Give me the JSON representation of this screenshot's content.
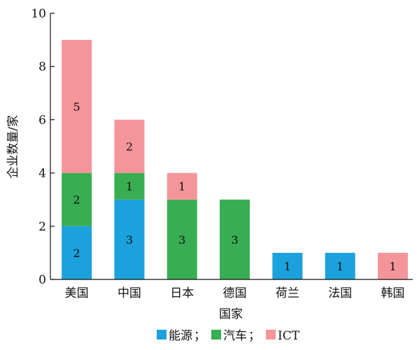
{
  "chart_data": {
    "type": "bar",
    "stacked": true,
    "categories": [
      "美国",
      "中国",
      "日本",
      "德国",
      "荷兰",
      "法国",
      "韩国"
    ],
    "series": [
      {
        "name": "能源",
        "color": "#1ba1dc",
        "values": [
          2,
          3,
          0,
          0,
          1,
          1,
          0
        ]
      },
      {
        "name": "汽车",
        "color": "#38ad52",
        "values": [
          2,
          1,
          3,
          3,
          0,
          0,
          0
        ]
      },
      {
        "name": "ICT",
        "color": "#f4959a",
        "values": [
          5,
          2,
          1,
          0,
          0,
          0,
          1
        ]
      }
    ],
    "ylim": [
      0,
      10
    ],
    "yticks": [
      0,
      2,
      4,
      6,
      8,
      10
    ],
    "xlabel": "国家",
    "ylabel": "企业数量/家",
    "legend_separator": "；",
    "legend_position": "bottom-center",
    "grid": false
  }
}
